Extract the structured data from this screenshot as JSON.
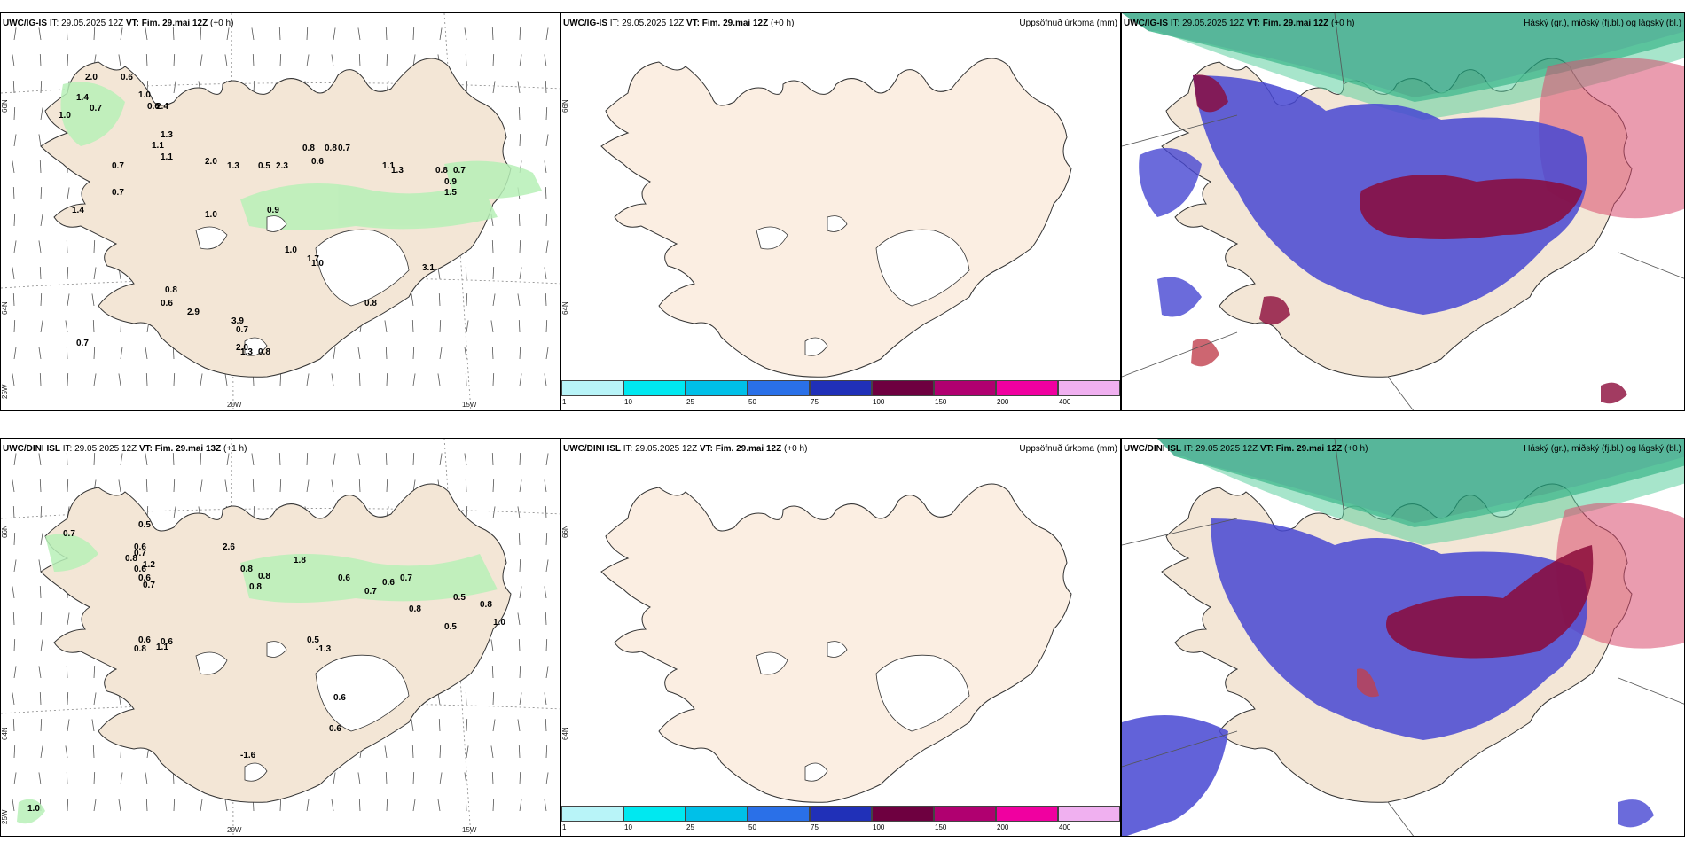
{
  "colors": {
    "land": "#f3e6d6",
    "land_light": "#fbeee2",
    "precip_green": "#b7f0b7",
    "dark_green": "#1f6e3a",
    "cloud_blue": "#4646d2",
    "cloud_red": "#8b0a3a",
    "cloud_teal": "#1f9e78",
    "cloud_pink": "#d94a6e"
  },
  "panels": [
    {
      "id": "top-left",
      "model": "UWC/IG-IS",
      "it_label": "IT: 29.05.2025 12Z",
      "vt_label": "VT: Fim. 29.mai 12Z",
      "lead": "(+0 h)",
      "right_title": "",
      "grid_labels": [
        "66N",
        "64N",
        "20W",
        "15W",
        "25W"
      ],
      "values": [
        "2.0",
        "0.6",
        "1.0",
        "0.7",
        "1.0",
        "0.6",
        "1.4",
        "2.4",
        "1.3",
        "1.1",
        "1.1",
        "0.7",
        "2.0",
        "1.3",
        "0.5",
        "2.3",
        "0.8",
        "0.6",
        "0.8",
        "0.7",
        "1.1",
        "1.3",
        "0.8",
        "0.9",
        "0.7",
        "1.4",
        "0.7",
        "1.5",
        "1.0",
        "0.9",
        "1.0",
        "1.0",
        "1.7",
        "3.1",
        "0.8",
        "0.6",
        "2.9",
        "3.9",
        "0.7",
        "2.0",
        "1.3",
        "0.8",
        "0.8",
        "0.7"
      ]
    },
    {
      "id": "top-mid",
      "model": "UWC/IG-IS",
      "it_label": "IT: 29.05.2025 12Z",
      "vt_label": "VT: Fim. 29.mai 12Z",
      "lead": "(+0 h)",
      "right_title": "Uppsöfnuð úrkoma (mm)",
      "grid_labels": [
        "66N",
        "64N"
      ]
    },
    {
      "id": "top-right",
      "model": "UWC/IG-IS",
      "it_label": "IT: 29.05.2025 12Z",
      "vt_label": "VT: Fim. 29.mai 12Z",
      "lead": "(+0 h)",
      "right_title": "Háský (gr.), miðský (fj.bl.) og lágský (bl.)"
    },
    {
      "id": "bottom-left",
      "model": "UWC/DINI ISL",
      "it_label": "IT: 29.05.2025 12Z",
      "vt_label": "VT: Fim. 29.mai 13Z",
      "lead": "(+1 h)",
      "right_title": "",
      "grid_labels": [
        "66N",
        "64N",
        "20W",
        "15W",
        "25W"
      ],
      "values": [
        "0.7",
        "0.5",
        "0.6",
        "0.7",
        "0.8",
        "1.2",
        "0.6",
        "0.6",
        "0.7",
        "2.6",
        "0.8",
        "0.8",
        "1.8",
        "0.6",
        "0.8",
        "0.7",
        "0.6",
        "0.7",
        "0.5",
        "0.8",
        "0.5",
        "0.8",
        "1.0",
        "0.6",
        "0.8",
        "0.6",
        "1.1",
        "0.5",
        "-1.3",
        "0.6",
        "0.6",
        "-1.6",
        "1.0"
      ]
    },
    {
      "id": "bottom-mid",
      "model": "UWC/DINI ISL",
      "it_label": "IT: 29.05.2025 12Z",
      "vt_label": "VT: Fim. 29.mai 12Z",
      "lead": "(+0 h)",
      "right_title": "Uppsöfnuð úrkoma (mm)",
      "grid_labels": [
        "66N",
        "64N"
      ]
    },
    {
      "id": "bottom-right",
      "model": "UWC/DINI ISL",
      "it_label": "IT: 29.05.2025 12Z",
      "vt_label": "VT: Fim. 29.mai 12Z",
      "lead": "(+0 h)",
      "right_title": "Háský (gr.), miðský (fj.bl.) og lágský (bl.)"
    }
  ],
  "colorbar": {
    "ticks": [
      "1",
      "10",
      "25",
      "50",
      "75",
      "100",
      "150",
      "200",
      "400"
    ],
    "colors": [
      "#b8f4f8",
      "#00e8f0",
      "#00c0e8",
      "#2a70e8",
      "#2030b8",
      "#6e0040",
      "#b00070",
      "#f000a0",
      "#f0b0f0"
    ]
  }
}
